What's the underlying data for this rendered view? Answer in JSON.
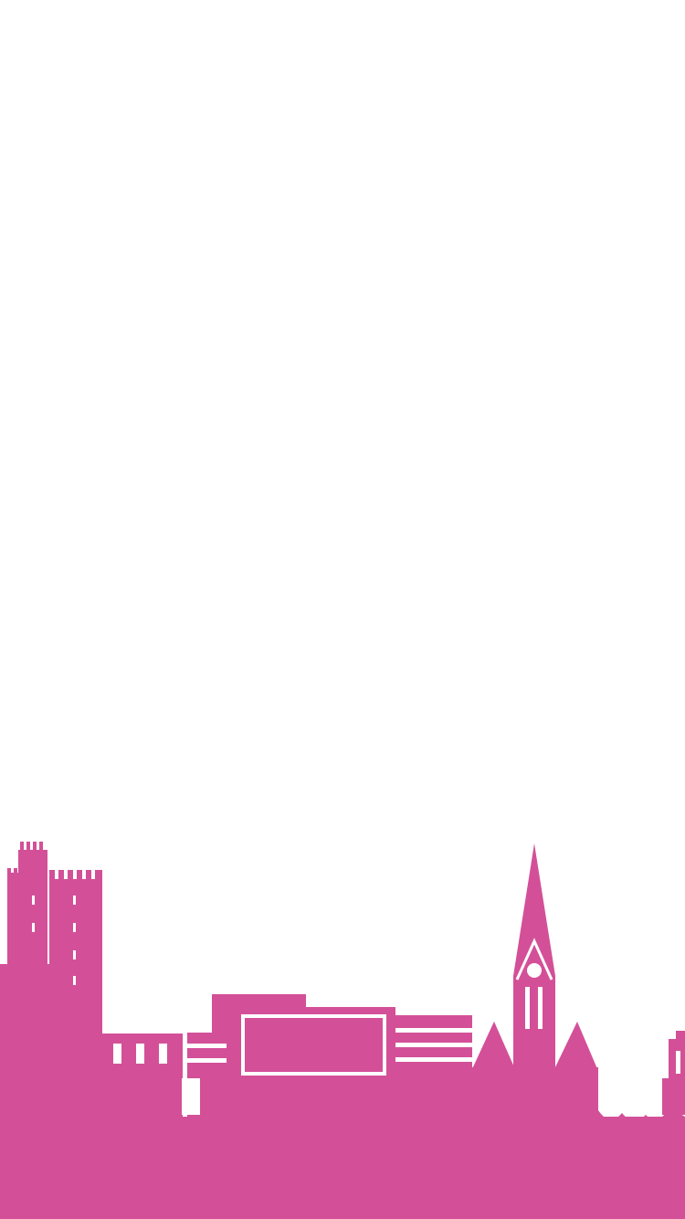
{
  "splash": {
    "background_color": "#ffffff",
    "skyline": {
      "icon": "city-skyline-illustration",
      "color": "#d35098"
    }
  }
}
